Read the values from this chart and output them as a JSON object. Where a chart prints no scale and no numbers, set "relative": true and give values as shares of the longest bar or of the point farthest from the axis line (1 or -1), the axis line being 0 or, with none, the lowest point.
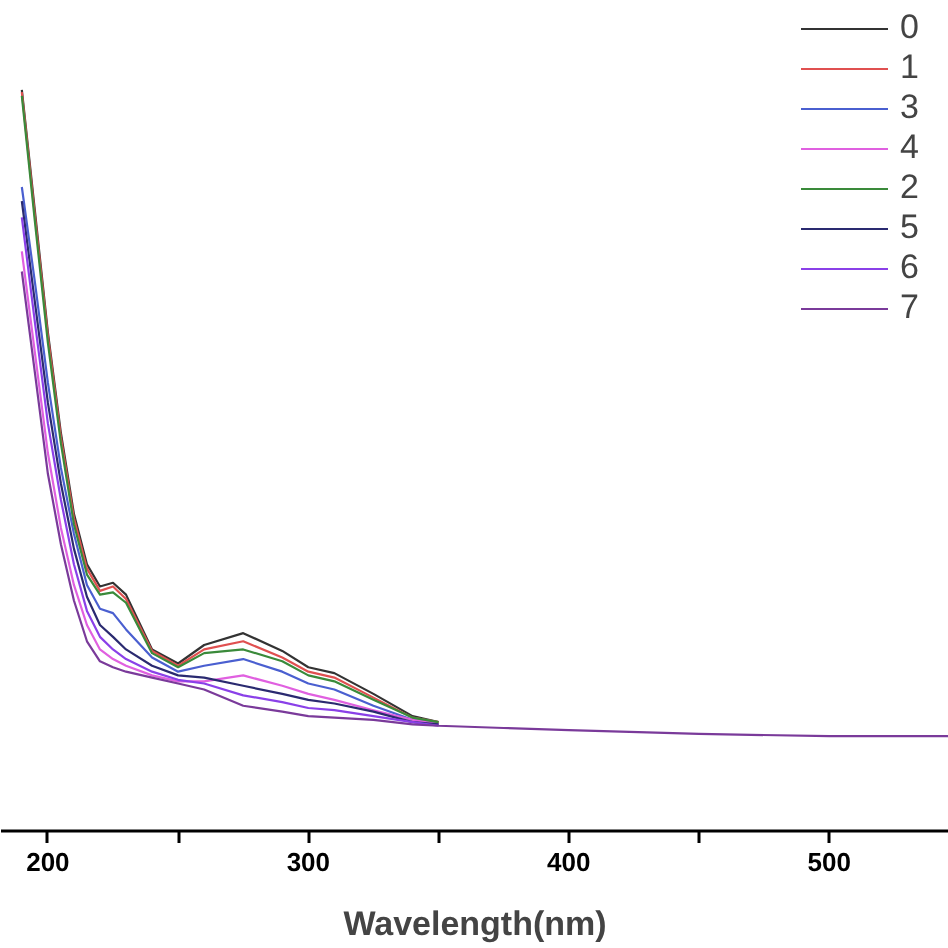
{
  "chart_data": {
    "type": "line",
    "relative": true,
    "xlabel": "Wavelength(nm)",
    "x": [
      190,
      195,
      200,
      205,
      210,
      215,
      220,
      225,
      230,
      240,
      250,
      260,
      275,
      290,
      300,
      310,
      325,
      340,
      350,
      375,
      400,
      450,
      500,
      546
    ],
    "xlim": [
      182,
      546
    ],
    "xticks": [
      200,
      {
        "value": 250,
        "label": null
      },
      300,
      {
        "value": 350,
        "label": null
      },
      400,
      {
        "value": 450,
        "label": null
      },
      500
    ],
    "grid": false,
    "legend": "top right",
    "line_style": "solid",
    "marker": "none",
    "series": [
      {
        "name": "0",
        "color": "#333333",
        "values": [
          1.0,
          0.837,
          0.673,
          0.537,
          0.428,
          0.36,
          0.33,
          0.335,
          0.319,
          0.245,
          0.226,
          0.251,
          0.267,
          0.243,
          0.221,
          0.213,
          0.185,
          0.155,
          0.147,
          null,
          null,
          null,
          null,
          null
        ]
      },
      {
        "name": "1",
        "color": "#e05050",
        "values": [
          0.997,
          0.831,
          0.668,
          0.531,
          0.422,
          0.354,
          0.324,
          0.33,
          0.313,
          0.243,
          0.223,
          0.245,
          0.256,
          0.234,
          0.215,
          0.207,
          0.18,
          0.153,
          0.147,
          null,
          null,
          null,
          null,
          null
        ]
      },
      {
        "name": "3",
        "color": "#4a5fd0",
        "values": [
          0.869,
          0.741,
          0.605,
          0.49,
          0.401,
          0.332,
          0.3,
          0.294,
          0.272,
          0.234,
          0.215,
          0.223,
          0.232,
          0.215,
          0.199,
          0.191,
          0.169,
          0.15,
          0.144,
          null,
          null,
          null,
          null,
          null
        ]
      },
      {
        "name": "4",
        "color": "#e060e0",
        "values": [
          0.782,
          0.646,
          0.51,
          0.409,
          0.332,
          0.278,
          0.245,
          0.232,
          0.223,
          0.21,
          0.202,
          0.202,
          0.21,
          0.196,
          0.185,
          0.177,
          0.163,
          0.15,
          0.144,
          null,
          null,
          null,
          null,
          null
        ]
      },
      {
        "name": "2",
        "color": "#3a8a3a",
        "values": [
          0.992,
          0.823,
          0.659,
          0.523,
          0.414,
          0.346,
          0.319,
          0.322,
          0.308,
          0.24,
          0.221,
          0.24,
          0.245,
          0.229,
          0.21,
          0.202,
          0.177,
          0.153,
          0.147,
          null,
          null,
          null,
          null,
          null
        ]
      },
      {
        "name": "5",
        "color": "#2a2a70",
        "values": [
          0.85,
          0.714,
          0.578,
          0.469,
          0.381,
          0.316,
          0.278,
          0.262,
          0.245,
          0.223,
          0.21,
          0.207,
          0.196,
          0.185,
          0.177,
          0.172,
          0.161,
          0.147,
          0.144,
          null,
          null,
          null,
          null,
          null
        ]
      },
      {
        "name": "6",
        "color": "#8a40e8",
        "values": [
          0.828,
          0.687,
          0.55,
          0.447,
          0.36,
          0.297,
          0.262,
          0.245,
          0.232,
          0.215,
          0.204,
          0.199,
          0.183,
          0.174,
          0.166,
          0.163,
          0.155,
          0.147,
          0.142,
          null,
          null,
          null,
          null,
          null
        ]
      },
      {
        "name": "7",
        "color": "#7a3a9a",
        "values": [
          0.755,
          0.619,
          0.482,
          0.387,
          0.311,
          0.256,
          0.229,
          0.221,
          0.215,
          0.207,
          0.199,
          0.191,
          0.169,
          0.161,
          0.155,
          0.153,
          0.15,
          0.144,
          0.142,
          0.139,
          0.136,
          0.131,
          0.128,
          0.128
        ]
      }
    ]
  }
}
